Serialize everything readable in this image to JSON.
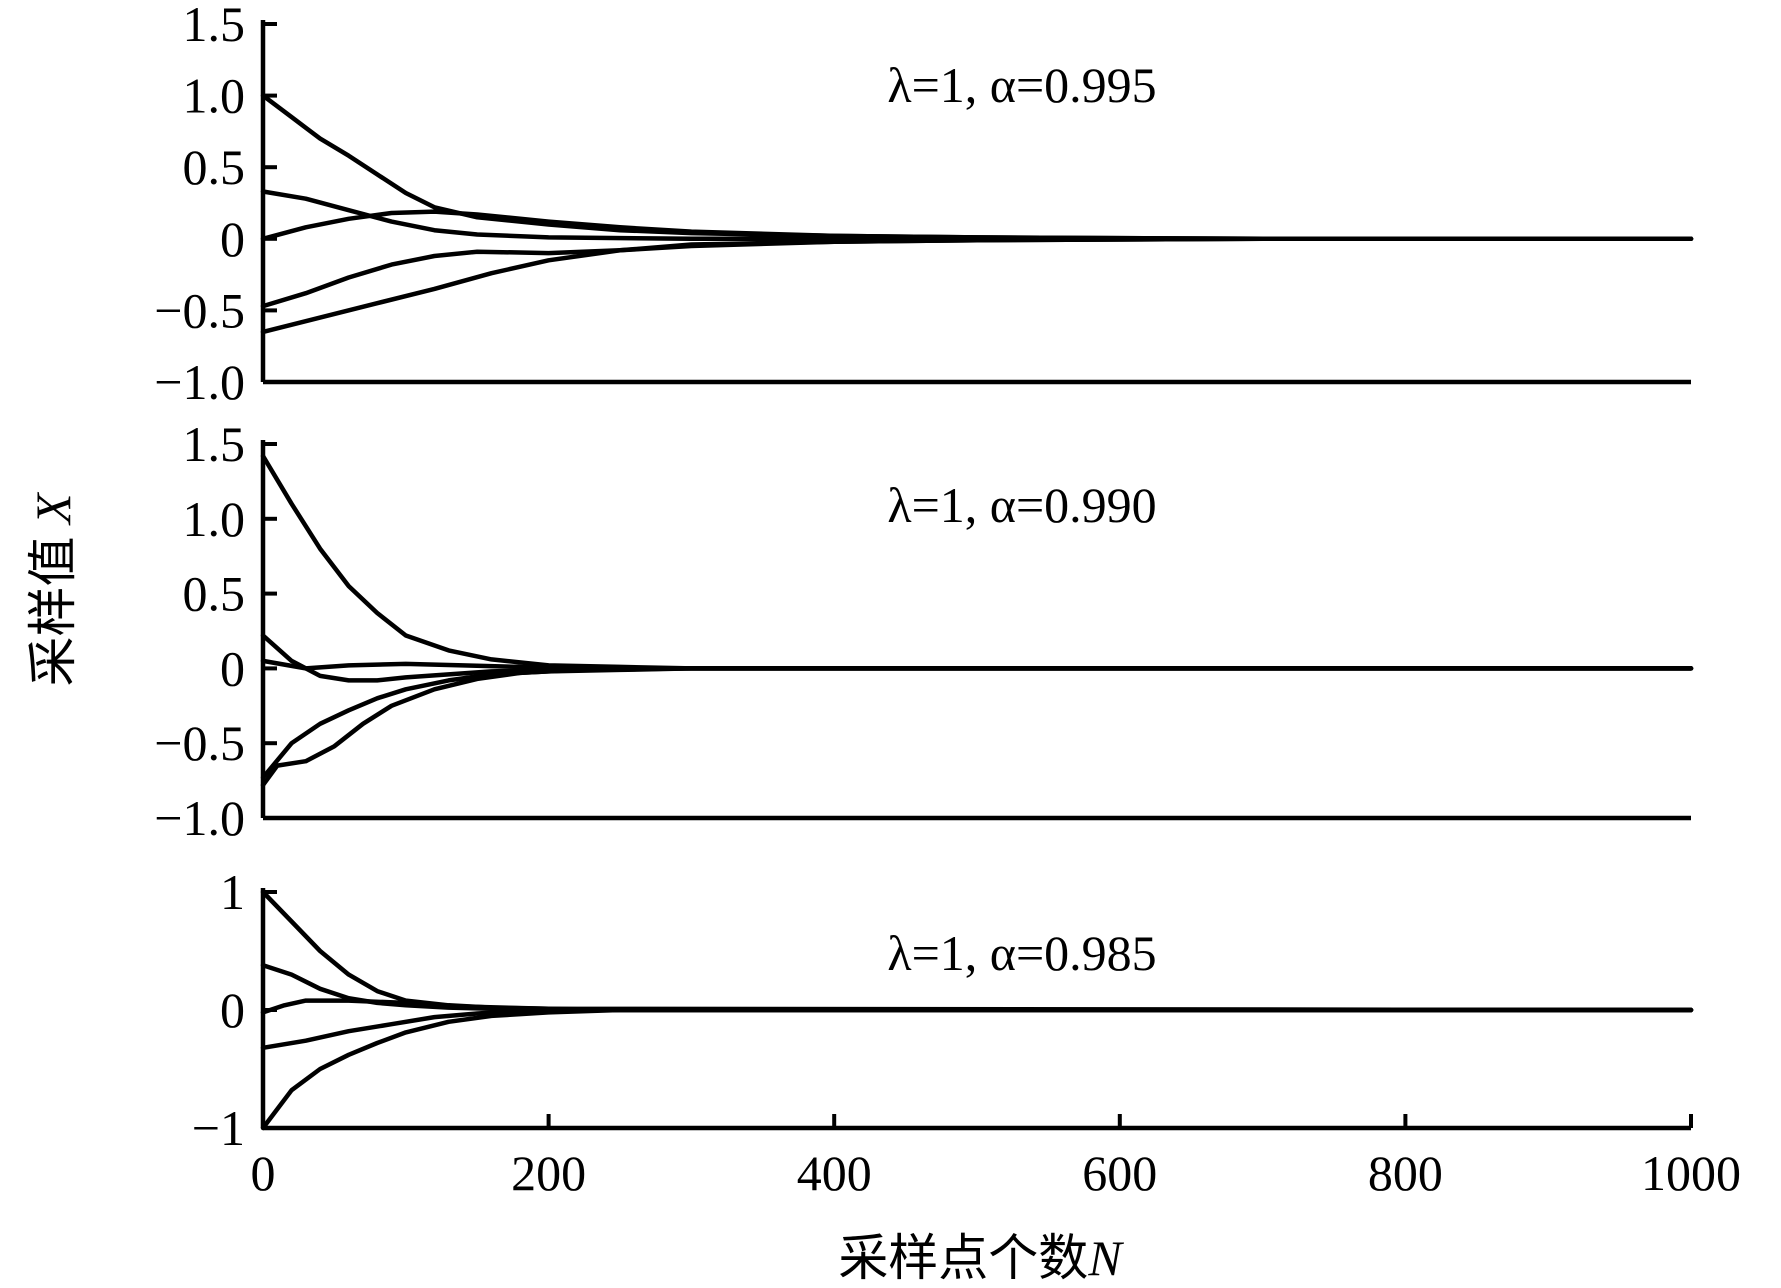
{
  "chart_data": {
    "type": "line",
    "xlabel": "采样点个数",
    "xlabel_var": "N",
    "ylabel": "采样值",
    "ylabel_var": "X",
    "xlim": [
      0,
      1000
    ],
    "xticks": [
      "0",
      "200",
      "400",
      "600",
      "800",
      "1000"
    ],
    "panels": [
      {
        "annotation": "λ=1, α=0.995",
        "ylim": [
          -1.0,
          1.5
        ],
        "yticks": [
          {
            "value": 1.5,
            "label": "1.5"
          },
          {
            "value": 1.0,
            "label": "1.0"
          },
          {
            "value": 0.5,
            "label": "0.5"
          },
          {
            "value": 0,
            "label": "0"
          },
          {
            "value": -0.5,
            "label": "−0.5"
          },
          {
            "value": -1.0,
            "label": "−1.0"
          }
        ],
        "series": [
          {
            "x": [
              0,
              20,
              40,
              60,
              80,
              100,
              120,
              150,
              200,
              250,
              300,
              400,
              500,
              700,
              1000
            ],
            "y": [
              1.0,
              0.85,
              0.7,
              0.58,
              0.45,
              0.32,
              0.22,
              0.15,
              0.1,
              0.06,
              0.04,
              0.02,
              0.01,
              0,
              0
            ]
          },
          {
            "x": [
              0,
              30,
              60,
              90,
              120,
              150,
              200,
              300,
              400,
              500,
              700,
              1000
            ],
            "y": [
              0.33,
              0.28,
              0.2,
              0.12,
              0.06,
              0.03,
              0.01,
              0,
              0,
              0,
              0,
              0
            ]
          },
          {
            "x": [
              0,
              30,
              60,
              90,
              120,
              150,
              200,
              250,
              300,
              400,
              500,
              700,
              1000
            ],
            "y": [
              0,
              0.08,
              0.14,
              0.18,
              0.19,
              0.17,
              0.12,
              0.08,
              0.05,
              0.02,
              0.01,
              0,
              0
            ]
          },
          {
            "x": [
              0,
              30,
              60,
              90,
              120,
              150,
              200,
              250,
              300,
              400,
              500,
              700,
              1000
            ],
            "y": [
              -0.47,
              -0.38,
              -0.27,
              -0.18,
              -0.12,
              -0.09,
              -0.1,
              -0.08,
              -0.05,
              -0.02,
              -0.01,
              0,
              0
            ]
          },
          {
            "x": [
              0,
              40,
              80,
              120,
              160,
              200,
              250,
              300,
              400,
              500,
              700,
              1000
            ],
            "y": [
              -0.65,
              -0.55,
              -0.45,
              -0.35,
              -0.24,
              -0.15,
              -0.08,
              -0.04,
              -0.02,
              -0.01,
              0,
              0
            ]
          }
        ]
      },
      {
        "annotation": "λ=1, α=0.990",
        "ylim": [
          -1.0,
          1.5
        ],
        "yticks": [
          {
            "value": 1.5,
            "label": "1.5"
          },
          {
            "value": 1.0,
            "label": "1.0"
          },
          {
            "value": 0.5,
            "label": "0.5"
          },
          {
            "value": 0,
            "label": "0"
          },
          {
            "value": -0.5,
            "label": "−0.5"
          },
          {
            "value": -1.0,
            "label": "−1.0"
          }
        ],
        "series": [
          {
            "x": [
              0,
              20,
              40,
              60,
              80,
              100,
              130,
              160,
              200,
              250,
              300,
              400,
              1000
            ],
            "y": [
              1.42,
              1.1,
              0.8,
              0.55,
              0.37,
              0.22,
              0.12,
              0.06,
              0.02,
              0.01,
              0,
              0,
              0
            ]
          },
          {
            "x": [
              0,
              20,
              40,
              60,
              80,
              100,
              130,
              160,
              200,
              250,
              300,
              1000
            ],
            "y": [
              0.22,
              0.05,
              -0.05,
              -0.08,
              -0.08,
              -0.06,
              -0.04,
              -0.02,
              -0.01,
              0,
              0,
              0
            ]
          },
          {
            "x": [
              0,
              30,
              60,
              100,
              140,
              180,
              220,
              300,
              1000
            ],
            "y": [
              0.05,
              0.0,
              0.02,
              0.03,
              0.02,
              0.01,
              0,
              0,
              0
            ]
          },
          {
            "x": [
              0,
              20,
              40,
              60,
              80,
              100,
              130,
              160,
              200,
              250,
              300,
              1000
            ],
            "y": [
              -0.73,
              -0.5,
              -0.37,
              -0.28,
              -0.2,
              -0.14,
              -0.08,
              -0.04,
              -0.02,
              -0.01,
              0,
              0
            ]
          },
          {
            "x": [
              0,
              10,
              30,
              50,
              70,
              90,
              120,
              150,
              180,
              220,
              300,
              1000
            ],
            "y": [
              -0.78,
              -0.65,
              -0.62,
              -0.52,
              -0.37,
              -0.25,
              -0.14,
              -0.07,
              -0.03,
              -0.01,
              0,
              0
            ]
          }
        ]
      },
      {
        "annotation": "λ=1, α=0.985",
        "ylim": [
          -1,
          1
        ],
        "yticks": [
          {
            "value": 1,
            "label": "1"
          },
          {
            "value": 0,
            "label": "0"
          },
          {
            "value": -1,
            "label": "−1"
          }
        ],
        "series": [
          {
            "x": [
              0,
              20,
              40,
              60,
              80,
              100,
              130,
              160,
              200,
              250,
              1000
            ],
            "y": [
              1.0,
              0.75,
              0.5,
              0.3,
              0.16,
              0.08,
              0.04,
              0.02,
              0.01,
              0,
              0
            ]
          },
          {
            "x": [
              0,
              20,
              40,
              60,
              80,
              100,
              130,
              160,
              200,
              250,
              1000
            ],
            "y": [
              0.38,
              0.3,
              0.18,
              0.1,
              0.06,
              0.04,
              0.02,
              0.01,
              0,
              0,
              0
            ]
          },
          {
            "x": [
              0,
              15,
              30,
              60,
              100,
              140,
              200,
              1000
            ],
            "y": [
              -0.02,
              0.04,
              0.08,
              0.08,
              0.06,
              0.03,
              0.01,
              0
            ]
          },
          {
            "x": [
              0,
              30,
              60,
              90,
              120,
              150,
              180,
              220,
              1000
            ],
            "y": [
              -0.32,
              -0.26,
              -0.18,
              -0.12,
              -0.06,
              -0.03,
              -0.01,
              0,
              0
            ]
          },
          {
            "x": [
              0,
              20,
              40,
              60,
              80,
              100,
              130,
              160,
              200,
              250,
              1000
            ],
            "y": [
              -1.0,
              -0.68,
              -0.5,
              -0.38,
              -0.28,
              -0.19,
              -0.1,
              -0.05,
              -0.02,
              0,
              0
            ]
          }
        ]
      }
    ]
  }
}
